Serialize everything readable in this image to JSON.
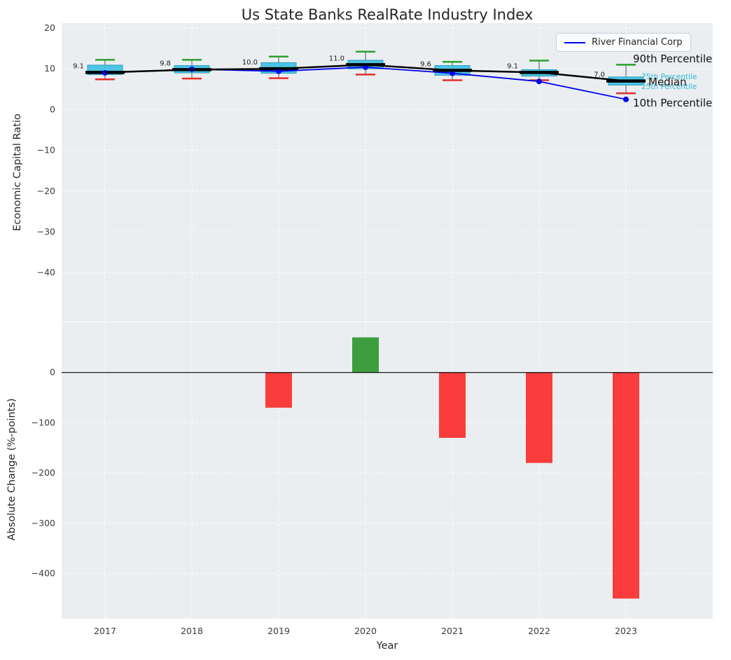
{
  "title": "Us State Banks RealRate Industry Index",
  "legend": {
    "label": "River Financial Corp"
  },
  "annotations": {
    "p90": "90th Percentile",
    "p75": "75th Percentile",
    "median": "Median",
    "p25": "25th Percentile",
    "p10": "10th Percentile"
  },
  "colors": {
    "panel_bg": "#EAEEF1",
    "grid": "#FFFFFF",
    "box_fill": "#4EC3E3",
    "box_edge": "#2E9FBF",
    "median_line": "#000000",
    "median_trend": "#000000",
    "whisker": "#555555",
    "whisker_top_cap": "#2CA02C",
    "whisker_bottom_cap": "#E82C2C",
    "company_line": "#0000EE",
    "bar_positive": "#3D9E40",
    "bar_negative": "#FA3C3C",
    "percentile_text_small": "#2BB8D8",
    "text": "#3B3B3B",
    "title_text": "#262626",
    "zero_line": "#000000"
  },
  "chart_data": [
    {
      "type": "boxplot+line",
      "title": "Us State Banks RealRate Industry Index",
      "ylabel": "Economic Capital Ratio",
      "ylim": [
        -52,
        21.2
      ],
      "yticks": [
        20,
        10,
        0,
        -10,
        -20,
        -30,
        -40
      ],
      "grid": true,
      "legend_position": "upper right",
      "categories": [
        "2017",
        "2018",
        "2019",
        "2020",
        "2021",
        "2022",
        "2023"
      ],
      "boxes": [
        {
          "p10": 7.4,
          "p25": 8.6,
          "median": 9.1,
          "p75": 10.9,
          "p90": 12.2,
          "label": "9.1"
        },
        {
          "p10": 7.6,
          "p25": 9.0,
          "median": 9.8,
          "p75": 10.8,
          "p90": 12.2,
          "label": "9.8"
        },
        {
          "p10": 7.7,
          "p25": 8.9,
          "median": 10.0,
          "p75": 11.5,
          "p90": 13.0,
          "label": "10.0"
        },
        {
          "p10": 8.6,
          "p25": 10.0,
          "median": 11.0,
          "p75": 12.1,
          "p90": 14.2,
          "label": "11.0"
        },
        {
          "p10": 7.2,
          "p25": 8.4,
          "median": 9.6,
          "p75": 10.8,
          "p90": 11.7,
          "label": "9.6"
        },
        {
          "p10": 7.2,
          "p25": 8.2,
          "median": 9.1,
          "p75": 9.8,
          "p90": 12.0,
          "label": "9.1"
        },
        {
          "p10": 4.0,
          "p25": 6.0,
          "median": 7.0,
          "p75": 8.0,
          "p90": 11.0,
          "label": "7.0"
        }
      ],
      "series": [
        {
          "name": "River Financial Corp",
          "values": [
            9.0,
            9.9,
            9.4,
            10.4,
            8.9,
            6.9,
            2.5
          ]
        }
      ]
    },
    {
      "type": "bar",
      "ylabel": "Absolute Change (%-points)",
      "xlabel": "Year",
      "ylim": [
        -490,
        100
      ],
      "yticks": [
        0,
        -100,
        -200,
        -300,
        -400
      ],
      "grid": true,
      "categories": [
        "2017",
        "2018",
        "2019",
        "2020",
        "2021",
        "2022",
        "2023"
      ],
      "values": [
        0,
        0,
        -70,
        70,
        -130,
        -180,
        -450
      ]
    }
  ]
}
